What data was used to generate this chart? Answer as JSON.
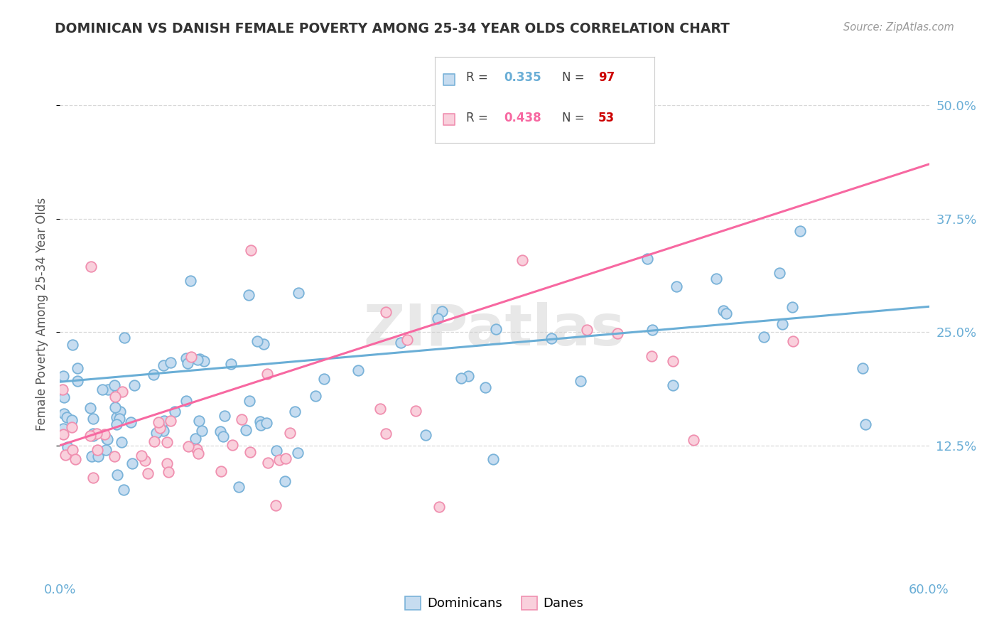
{
  "title": "DOMINICAN VS DANISH FEMALE POVERTY AMONG 25-34 YEAR OLDS CORRELATION CHART",
  "source": "Source: ZipAtlas.com",
  "ylabel": "Female Poverty Among 25-34 Year Olds",
  "xlim": [
    0.0,
    0.6
  ],
  "ylim": [
    -0.02,
    0.56
  ],
  "xticks": [
    0.0,
    0.1,
    0.2,
    0.3,
    0.4,
    0.5,
    0.6
  ],
  "yticks": [
    0.125,
    0.25,
    0.375,
    0.5
  ],
  "ytick_labels": [
    "12.5%",
    "25.0%",
    "37.5%",
    "50.0%"
  ],
  "xtick_labels": [
    "0.0%",
    "",
    "",
    "",
    "",
    "",
    "60.0%"
  ],
  "r_dominicans": 0.335,
  "n_dominicans": 97,
  "r_danes": 0.438,
  "n_danes": 53,
  "dominican_fill": "#c6dcf0",
  "dominican_edge": "#7ab3d9",
  "danish_fill": "#f9d0dc",
  "danish_edge": "#f090b0",
  "dominican_line": "#6aaed6",
  "danish_line": "#f768a1",
  "dot_size": 110,
  "dot_edge_width": 1.3,
  "background_color": "#ffffff",
  "grid_color": "#d8d8d8",
  "title_color": "#333333",
  "axis_label_color": "#555555",
  "tick_color": "#6aaed6",
  "watermark": "ZIPatlas",
  "legend_box_color": "#e8e8e8",
  "dom_trend_start_y": 0.195,
  "dom_trend_end_y": 0.278,
  "dan_trend_start_y": 0.125,
  "dan_trend_end_y": 0.435
}
